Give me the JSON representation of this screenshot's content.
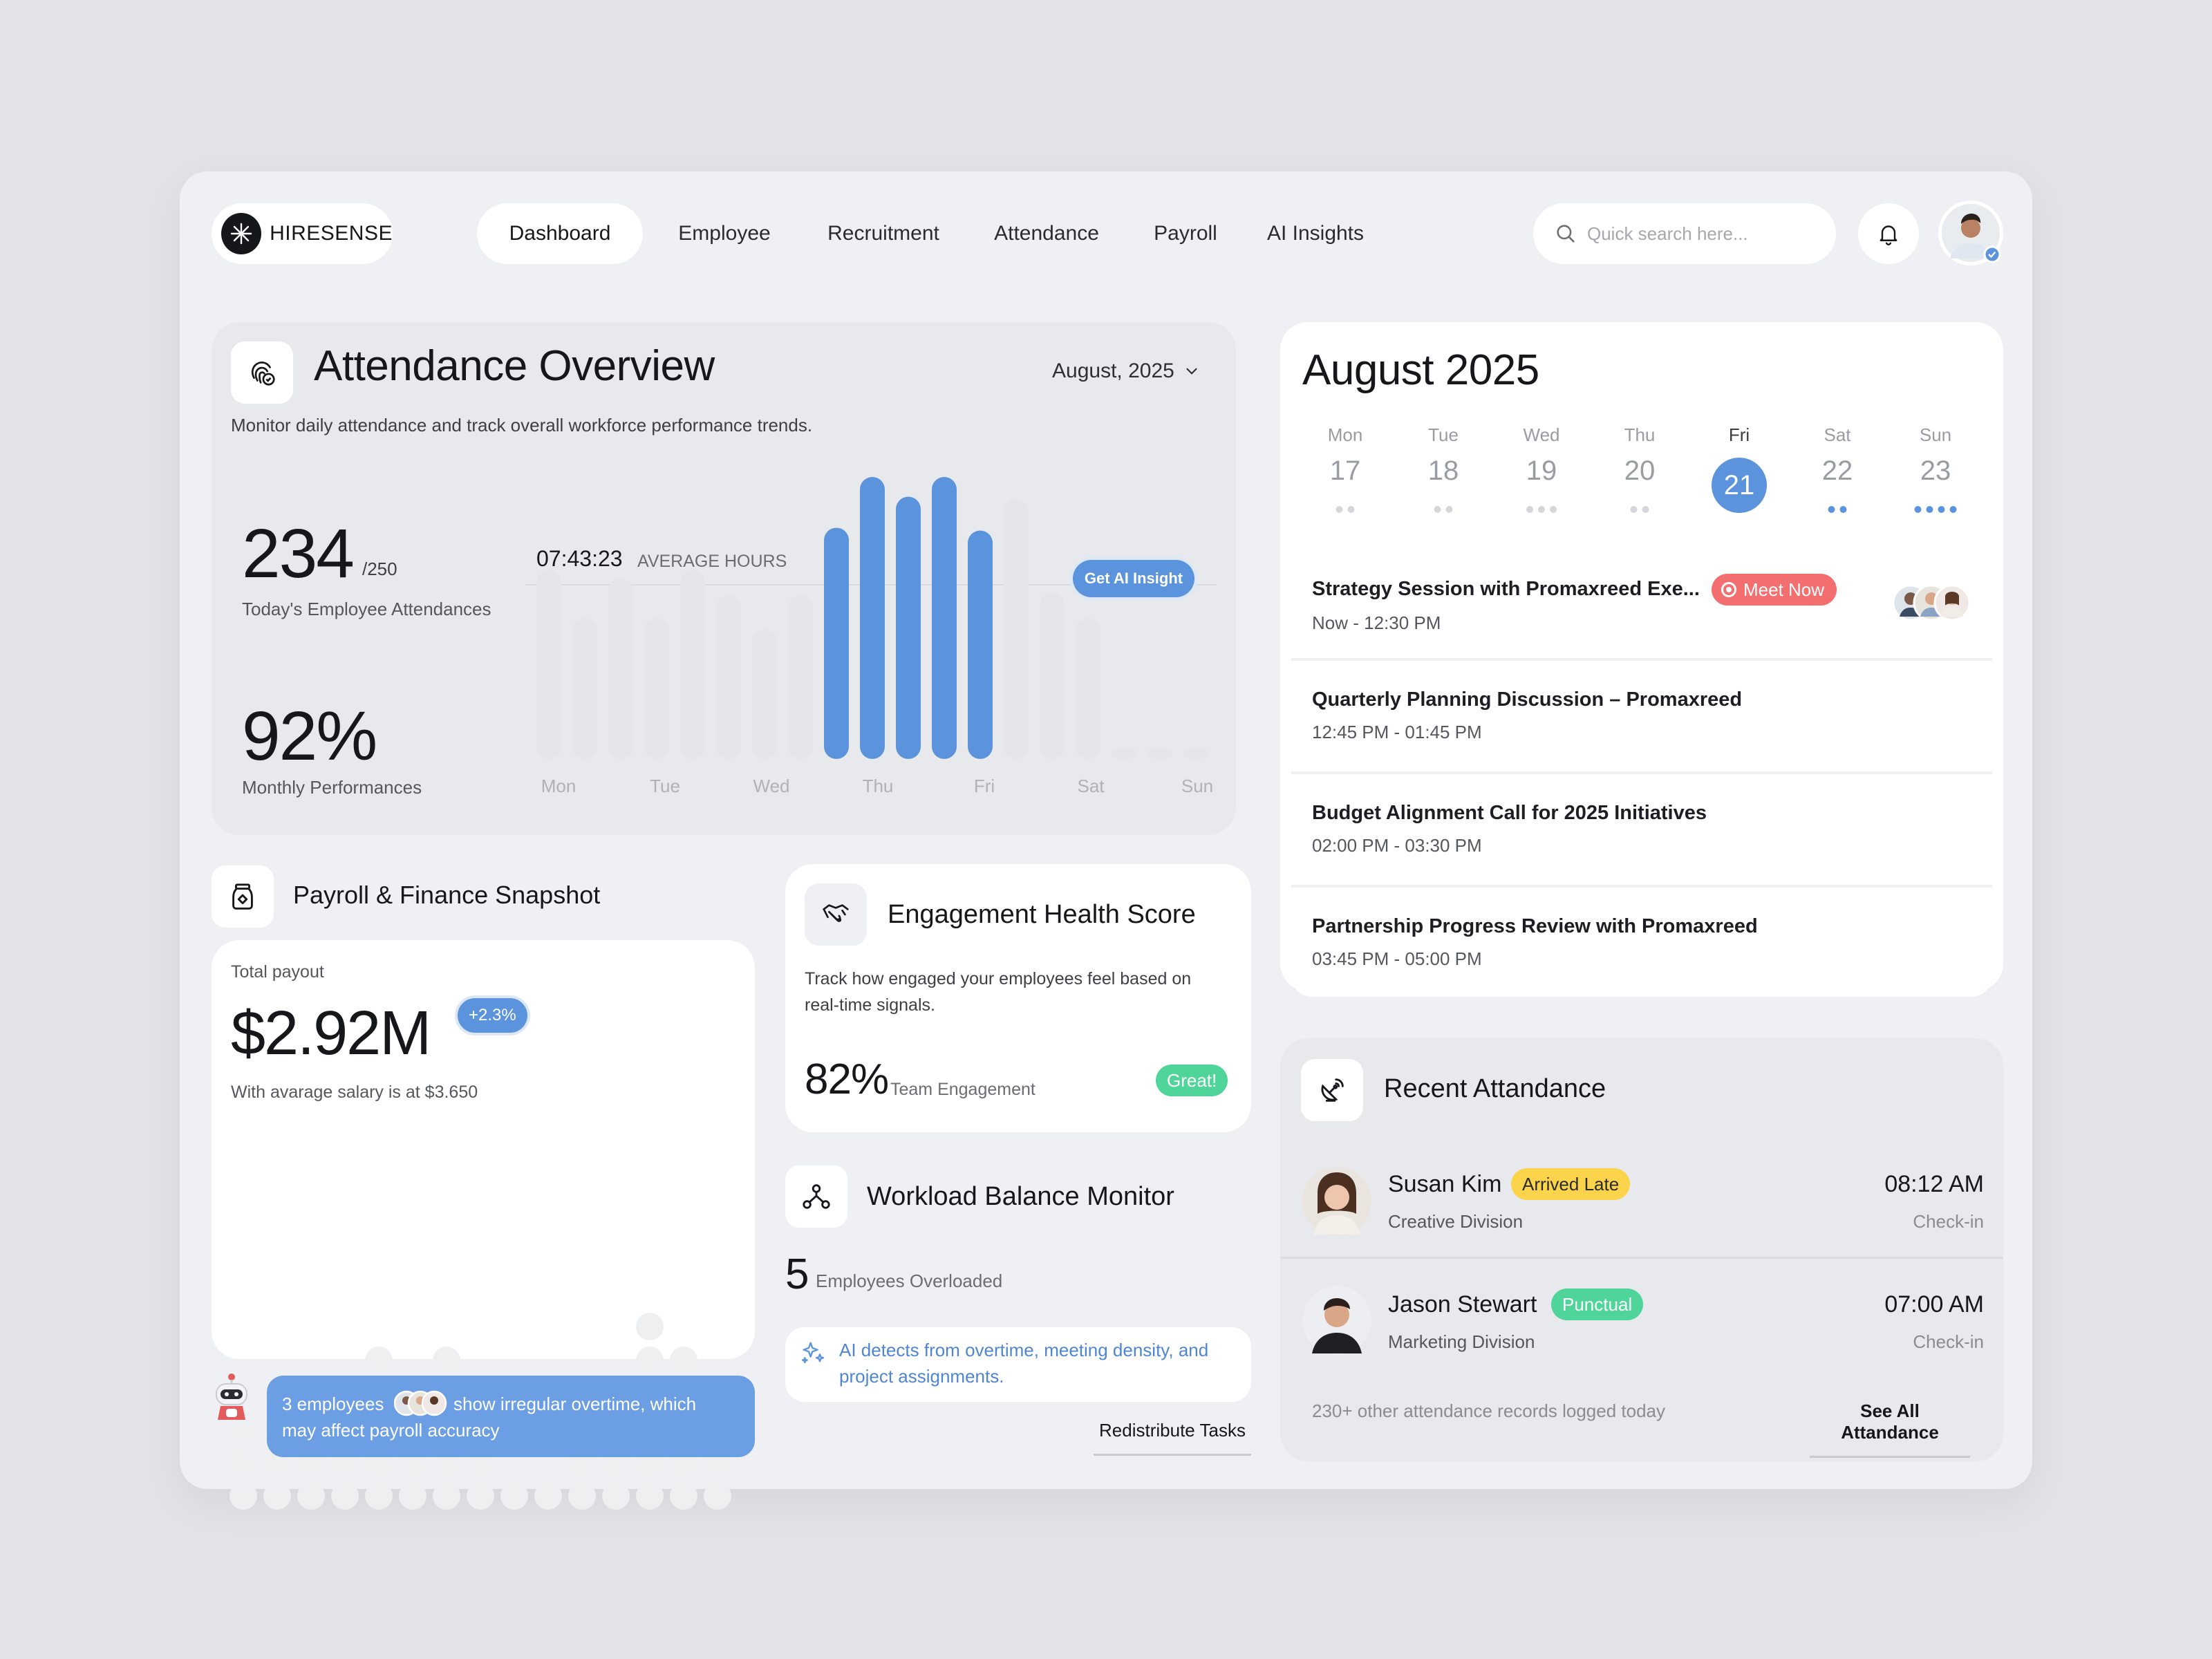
{
  "brand": {
    "name": "HIRESENSE"
  },
  "nav": {
    "items": [
      {
        "label": "Dashboard",
        "active": true
      },
      {
        "label": "Employee"
      },
      {
        "label": "Recruitment"
      },
      {
        "label": "Attendance"
      },
      {
        "label": "Payroll"
      },
      {
        "label": "AI Insights"
      }
    ]
  },
  "search": {
    "placeholder": "Quick search here..."
  },
  "attendance_overview": {
    "title": "Attendance Overview",
    "subtitle": "Monitor daily attendance and track overall workforce performance trends.",
    "month": "August, 2025",
    "today_count": "234",
    "today_total": "/250",
    "today_label": "Today's Employee Attendances",
    "performance": "92%",
    "performance_label": "Monthly Performances",
    "average_hours": "07:43:23",
    "average_label": "AVERAGE HOURS",
    "ai_button": "Get AI Insight"
  },
  "chart_data": {
    "type": "bar",
    "xlabels": [
      "Mon",
      "Tue",
      "Wed",
      "Thu",
      "Fri",
      "Sat",
      "Sun"
    ],
    "values": [
      0.67,
      0.5,
      0.64,
      0.5,
      0.67,
      0.58,
      0.46,
      0.58,
      0.82,
      1.0,
      0.93,
      1.0,
      0.81,
      0.92,
      0.59,
      0.5,
      0.04,
      0.04,
      0.04
    ],
    "highlighted": [
      8,
      9,
      10,
      11,
      12
    ],
    "colors": {
      "highlight": "#5b94dc",
      "base": "#e4e5e8"
    }
  },
  "calendar": {
    "title": "August 2025",
    "days": [
      {
        "dow": "Mon",
        "num": "17",
        "dots": 2,
        "blue": false
      },
      {
        "dow": "Tue",
        "num": "18",
        "dots": 2,
        "blue": false
      },
      {
        "dow": "Wed",
        "num": "19",
        "dots": 3,
        "blue": false
      },
      {
        "dow": "Thu",
        "num": "20",
        "dots": 2,
        "blue": false
      },
      {
        "dow": "Fri",
        "num": "21",
        "dots": 0,
        "blue": false,
        "selected": true
      },
      {
        "dow": "Sat",
        "num": "22",
        "dots": 2,
        "blue": true
      },
      {
        "dow": "Sun",
        "num": "23",
        "dots": 4,
        "blue": true
      }
    ],
    "events": [
      {
        "title": "Strategy Session with Promaxreed Exe...",
        "time": "Now - 12:30 PM",
        "badge": "Meet Now"
      },
      {
        "title": "Quarterly Planning Discussion – Promaxreed",
        "time": "12:45 PM - 01:45 PM"
      },
      {
        "title": "Budget Alignment Call for 2025 Initiatives",
        "time": "02:00 PM - 03:30 PM"
      },
      {
        "title": "Partnership Progress Review with Promaxreed",
        "time": "03:45 PM - 05:00 PM"
      }
    ]
  },
  "payroll": {
    "title": "Payroll & Finance Snapshot",
    "total_label": "Total payout",
    "total_value": "$2.92M",
    "change": "+2.3%",
    "avg_text": "With avarage salary is at $3.650",
    "alert_prefix": "3 employees",
    "alert_suffix": "show irregular overtime, which",
    "alert_line2": "may affect payroll accuracy",
    "dot_columns": [
      3,
      4,
      3,
      4,
      5,
      3,
      5,
      4,
      1,
      1,
      2,
      3,
      6,
      5,
      2
    ]
  },
  "engagement": {
    "title": "Engagement Health Score",
    "description_1": "Track how engaged your employees feel based on",
    "description_2": "real-time signals.",
    "score": "82%",
    "score_label": "Team Engagement",
    "badge": "Great!"
  },
  "workload": {
    "title": "Workload Balance Monitor",
    "count": "5",
    "count_label": "Employees Overloaded",
    "ai_note_1": "AI detects from overtime, meeting density, and",
    "ai_note_2": "project assignments.",
    "action": "Redistribute Tasks"
  },
  "recent_attendance": {
    "title": "Recent Attandance",
    "people": [
      {
        "name": "Susan Kim",
        "status": "Arrived Late",
        "division": "Creative Division",
        "time": "08:12 AM",
        "type": "Check-in",
        "status_color": "#fbd44c"
      },
      {
        "name": "Jason Stewart",
        "status": "Punctual",
        "division": "Marketing Division",
        "time": "07:00 AM",
        "type": "Check-in",
        "status_color": "#4fd49a"
      }
    ],
    "footer_text": "230+ other attendance records logged today",
    "see_all": "See All Attandance"
  }
}
